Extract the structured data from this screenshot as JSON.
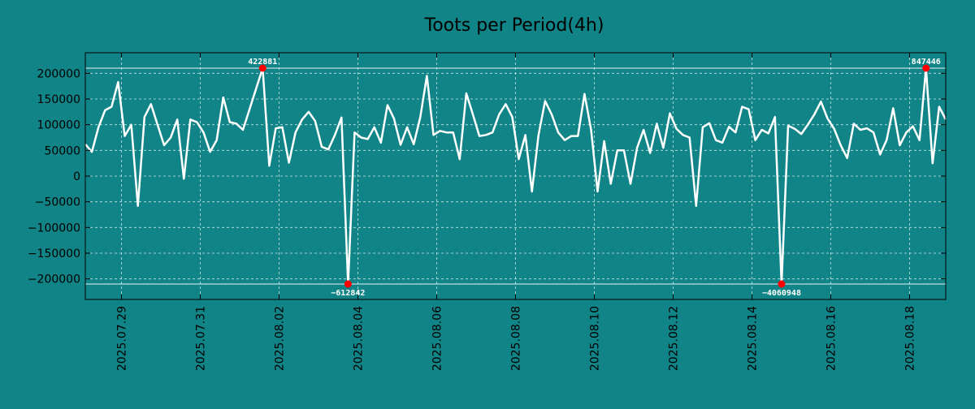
{
  "colors": {
    "background": "#118487",
    "line": "#ffffff",
    "grid": "#c8e6e6",
    "marker": "#ff0000",
    "axis": "#000000"
  },
  "chart_data": {
    "type": "line",
    "title": "Toots per Period(4h)",
    "xlabel": "",
    "ylabel": "",
    "x_range": [
      0,
      131
    ],
    "ylim": [
      -240000,
      240000
    ],
    "yticks": [
      200000,
      150000,
      100000,
      50000,
      0,
      -50000,
      -100000,
      -150000,
      -200000
    ],
    "ytick_labels": [
      "200000",
      "150000",
      "100000",
      "50000",
      "0",
      "−50000",
      "−100000",
      "−150000",
      "−200000"
    ],
    "xticks": [
      5.5,
      17.5,
      29.5,
      41.5,
      53.5,
      65.5,
      77.5,
      89.5,
      101.5,
      113.5,
      125.5
    ],
    "xtick_labels": [
      "2025.07.29",
      "2025.07.31",
      "2025.08.02",
      "2025.08.04",
      "2025.08.06",
      "2025.08.08",
      "2025.08.10",
      "2025.08.12",
      "2025.08.14",
      "2025.08.16",
      "2025.08.18"
    ],
    "clip_lines": [
      210000,
      -210000
    ],
    "grid": true,
    "series": [
      {
        "name": "toots",
        "values": [
          62000,
          47000,
          95000,
          128000,
          135000,
          183000,
          78000,
          100000,
          -58000,
          115000,
          140000,
          100000,
          60000,
          75000,
          110000,
          -5000,
          110000,
          105000,
          85000,
          47000,
          70000,
          153000,
          105000,
          102000,
          90000,
          130000,
          170000,
          210000,
          20000,
          93000,
          95000,
          26000,
          85000,
          110000,
          125000,
          107000,
          57000,
          52000,
          80000,
          114000,
          -210000,
          85000,
          75000,
          72000,
          95000,
          65000,
          138000,
          112000,
          61000,
          95000,
          62000,
          115000,
          195000,
          80000,
          88000,
          85000,
          85000,
          33000,
          161000,
          120000,
          78000,
          80000,
          85000,
          120000,
          140000,
          115000,
          33000,
          80000,
          -30000,
          80000,
          146000,
          120000,
          85000,
          70000,
          78000,
          78000,
          160000,
          90000,
          -30000,
          68000,
          -15000,
          50000,
          50000,
          -15000,
          55000,
          90000,
          45000,
          102000,
          55000,
          122000,
          92000,
          80000,
          75000,
          -58000,
          95000,
          103000,
          70000,
          65000,
          96000,
          85000,
          135000,
          130000,
          70000,
          90000,
          83000,
          115000,
          -210000,
          98000,
          92000,
          82000,
          100000,
          120000,
          145000,
          112000,
          92000,
          60000,
          35000,
          102000,
          90000,
          93000,
          85000,
          42000,
          70000,
          132000,
          60000,
          85000,
          97000,
          70000,
          210000,
          25000,
          135000,
          110000
        ]
      }
    ],
    "annotations": [
      {
        "index": 27,
        "value": 210000,
        "label": "422881",
        "position": "above"
      },
      {
        "index": 40,
        "value": -210000,
        "label": "−612842",
        "position": "below"
      },
      {
        "index": 106,
        "value": -210000,
        "label": "−4060948",
        "position": "below"
      },
      {
        "index": 128,
        "value": 210000,
        "label": "847446",
        "position": "above"
      }
    ]
  }
}
